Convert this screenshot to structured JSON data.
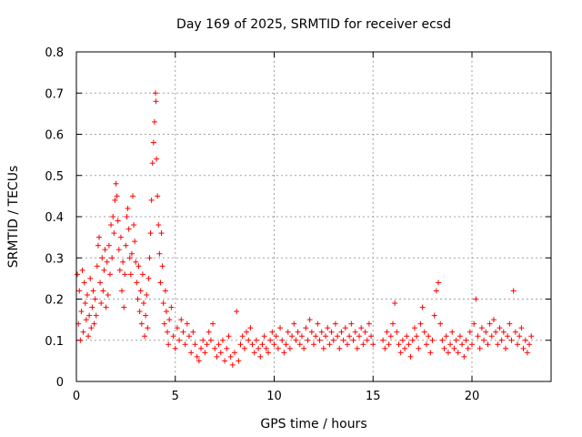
{
  "chart_data": {
    "type": "scatter",
    "title": "Day 169 of 2025, SRMTID for receiver ecsd",
    "xlabel": "GPS time / hours",
    "ylabel": "SRMTID / TECUs",
    "xlim": [
      0,
      24
    ],
    "ylim": [
      0,
      0.8
    ],
    "xticks": [
      0,
      5,
      10,
      15,
      20
    ],
    "xtick_labels": [
      "0",
      "5",
      "10",
      "15",
      "20"
    ],
    "yticks": [
      0,
      0.1,
      0.2,
      0.3,
      0.4,
      0.5,
      0.6,
      0.7,
      0.8
    ],
    "ytick_labels": [
      "0",
      "0.1",
      "0.2",
      "0.3",
      "0.4",
      "0.5",
      "0.6",
      "0.7",
      "0.8"
    ],
    "grid": true,
    "marker": "+",
    "series": [
      {
        "name": "SRMTID",
        "color": "#ff0000",
        "points": [
          [
            0.05,
            0.26
          ],
          [
            0.1,
            0.14
          ],
          [
            0.15,
            0.22
          ],
          [
            0.2,
            0.1
          ],
          [
            0.25,
            0.17
          ],
          [
            0.3,
            0.27
          ],
          [
            0.35,
            0.12
          ],
          [
            0.4,
            0.24
          ],
          [
            0.45,
            0.19
          ],
          [
            0.5,
            0.15
          ],
          [
            0.55,
            0.21
          ],
          [
            0.6,
            0.11
          ],
          [
            0.65,
            0.16
          ],
          [
            0.7,
            0.25
          ],
          [
            0.75,
            0.13
          ],
          [
            0.8,
            0.18
          ],
          [
            0.85,
            0.22
          ],
          [
            0.9,
            0.14
          ],
          [
            0.95,
            0.2
          ],
          [
            1.0,
            0.16
          ],
          [
            1.05,
            0.28
          ],
          [
            1.1,
            0.33
          ],
          [
            1.15,
            0.35
          ],
          [
            1.2,
            0.24
          ],
          [
            1.25,
            0.19
          ],
          [
            1.3,
            0.3
          ],
          [
            1.35,
            0.22
          ],
          [
            1.4,
            0.27
          ],
          [
            1.45,
            0.32
          ],
          [
            1.5,
            0.18
          ],
          [
            1.55,
            0.29
          ],
          [
            1.6,
            0.21
          ],
          [
            1.65,
            0.33
          ],
          [
            1.7,
            0.26
          ],
          [
            1.75,
            0.38
          ],
          [
            1.8,
            0.3
          ],
          [
            1.85,
            0.4
          ],
          [
            1.9,
            0.36
          ],
          [
            1.95,
            0.44
          ],
          [
            2.0,
            0.48
          ],
          [
            2.05,
            0.45
          ],
          [
            2.1,
            0.39
          ],
          [
            2.15,
            0.32
          ],
          [
            2.2,
            0.27
          ],
          [
            2.25,
            0.35
          ],
          [
            2.3,
            0.22
          ],
          [
            2.35,
            0.29
          ],
          [
            2.4,
            0.18
          ],
          [
            2.45,
            0.26
          ],
          [
            2.5,
            0.33
          ],
          [
            2.55,
            0.4
          ],
          [
            2.6,
            0.42
          ],
          [
            2.65,
            0.37
          ],
          [
            2.7,
            0.3
          ],
          [
            2.75,
            0.26
          ],
          [
            2.8,
            0.31
          ],
          [
            2.85,
            0.45
          ],
          [
            2.9,
            0.38
          ],
          [
            2.95,
            0.34
          ],
          [
            3.0,
            0.29
          ],
          [
            3.05,
            0.24
          ],
          [
            3.1,
            0.2
          ],
          [
            3.15,
            0.28
          ],
          [
            3.2,
            0.17
          ],
          [
            3.25,
            0.22
          ],
          [
            3.3,
            0.14
          ],
          [
            3.35,
            0.26
          ],
          [
            3.4,
            0.19
          ],
          [
            3.45,
            0.11
          ],
          [
            3.5,
            0.16
          ],
          [
            3.55,
            0.21
          ],
          [
            3.6,
            0.13
          ],
          [
            3.65,
            0.25
          ],
          [
            3.7,
            0.3
          ],
          [
            3.75,
            0.36
          ],
          [
            3.8,
            0.44
          ],
          [
            3.85,
            0.53
          ],
          [
            3.9,
            0.58
          ],
          [
            3.95,
            0.63
          ],
          [
            4.0,
            0.7
          ],
          [
            4.02,
            0.68
          ],
          [
            4.05,
            0.54
          ],
          [
            4.1,
            0.45
          ],
          [
            4.15,
            0.38
          ],
          [
            4.2,
            0.31
          ],
          [
            4.25,
            0.24
          ],
          [
            4.3,
            0.36
          ],
          [
            4.35,
            0.28
          ],
          [
            4.4,
            0.19
          ],
          [
            4.45,
            0.14
          ],
          [
            4.5,
            0.22
          ],
          [
            4.55,
            0.17
          ],
          [
            4.6,
            0.12
          ],
          [
            4.65,
            0.09
          ],
          [
            4.7,
            0.15
          ],
          [
            4.8,
            0.18
          ],
          [
            4.9,
            0.11
          ],
          [
            5.0,
            0.08
          ],
          [
            5.1,
            0.13
          ],
          [
            5.2,
            0.1
          ],
          [
            5.3,
            0.15
          ],
          [
            5.4,
            0.12
          ],
          [
            5.5,
            0.09
          ],
          [
            5.6,
            0.14
          ],
          [
            5.7,
            0.11
          ],
          [
            5.8,
            0.07
          ],
          [
            5.9,
            0.12
          ],
          [
            6.0,
            0.09
          ],
          [
            6.1,
            0.06
          ],
          [
            6.2,
            0.05
          ],
          [
            6.3,
            0.08
          ],
          [
            6.4,
            0.1
          ],
          [
            6.5,
            0.07
          ],
          [
            6.6,
            0.09
          ],
          [
            6.7,
            0.12
          ],
          [
            6.8,
            0.1
          ],
          [
            6.9,
            0.14
          ],
          [
            7.0,
            0.08
          ],
          [
            7.1,
            0.06
          ],
          [
            7.2,
            0.09
          ],
          [
            7.3,
            0.07
          ],
          [
            7.4,
            0.1
          ],
          [
            7.5,
            0.05
          ],
          [
            7.6,
            0.08
          ],
          [
            7.7,
            0.11
          ],
          [
            7.8,
            0.06
          ],
          [
            7.9,
            0.04
          ],
          [
            8.0,
            0.07
          ],
          [
            8.1,
            0.17
          ],
          [
            8.2,
            0.05
          ],
          [
            8.3,
            0.09
          ],
          [
            8.4,
            0.11
          ],
          [
            8.5,
            0.08
          ],
          [
            8.6,
            0.12
          ],
          [
            8.7,
            0.1
          ],
          [
            8.8,
            0.13
          ],
          [
            8.9,
            0.09
          ],
          [
            9.0,
            0.07
          ],
          [
            9.1,
            0.1
          ],
          [
            9.2,
            0.08
          ],
          [
            9.3,
            0.06
          ],
          [
            9.4,
            0.09
          ],
          [
            9.5,
            0.11
          ],
          [
            9.6,
            0.08
          ],
          [
            9.7,
            0.07
          ],
          [
            9.8,
            0.1
          ],
          [
            9.9,
            0.12
          ],
          [
            10.0,
            0.09
          ],
          [
            10.1,
            0.11
          ],
          [
            10.2,
            0.08
          ],
          [
            10.3,
            0.13
          ],
          [
            10.4,
            0.1
          ],
          [
            10.5,
            0.07
          ],
          [
            10.6,
            0.09
          ],
          [
            10.7,
            0.12
          ],
          [
            10.8,
            0.08
          ],
          [
            10.9,
            0.11
          ],
          [
            11.0,
            0.14
          ],
          [
            11.1,
            0.1
          ],
          [
            11.2,
            0.12
          ],
          [
            11.3,
            0.09
          ],
          [
            11.4,
            0.11
          ],
          [
            11.5,
            0.08
          ],
          [
            11.6,
            0.13
          ],
          [
            11.7,
            0.1
          ],
          [
            11.8,
            0.15
          ],
          [
            11.9,
            0.12
          ],
          [
            12.0,
            0.09
          ],
          [
            12.1,
            0.11
          ],
          [
            12.2,
            0.14
          ],
          [
            12.3,
            0.1
          ],
          [
            12.4,
            0.12
          ],
          [
            12.5,
            0.08
          ],
          [
            12.6,
            0.11
          ],
          [
            12.7,
            0.13
          ],
          [
            12.8,
            0.09
          ],
          [
            12.9,
            0.12
          ],
          [
            13.0,
            0.1
          ],
          [
            13.1,
            0.14
          ],
          [
            13.2,
            0.11
          ],
          [
            13.3,
            0.08
          ],
          [
            13.4,
            0.12
          ],
          [
            13.5,
            0.1
          ],
          [
            13.6,
            0.13
          ],
          [
            13.7,
            0.09
          ],
          [
            13.8,
            0.11
          ],
          [
            13.9,
            0.14
          ],
          [
            14.0,
            0.1
          ],
          [
            14.1,
            0.12
          ],
          [
            14.2,
            0.08
          ],
          [
            14.3,
            0.11
          ],
          [
            14.4,
            0.13
          ],
          [
            14.5,
            0.09
          ],
          [
            14.6,
            0.12
          ],
          [
            14.7,
            0.1
          ],
          [
            14.8,
            0.14
          ],
          [
            14.9,
            0.11
          ],
          [
            15.0,
            0.09
          ],
          [
            15.5,
            0.1
          ],
          [
            15.6,
            0.08
          ],
          [
            15.7,
            0.12
          ],
          [
            15.8,
            0.09
          ],
          [
            15.9,
            0.11
          ],
          [
            16.0,
            0.14
          ],
          [
            16.1,
            0.19
          ],
          [
            16.2,
            0.12
          ],
          [
            16.3,
            0.09
          ],
          [
            16.4,
            0.07
          ],
          [
            16.5,
            0.1
          ],
          [
            16.6,
            0.08
          ],
          [
            16.7,
            0.11
          ],
          [
            16.8,
            0.09
          ],
          [
            16.9,
            0.06
          ],
          [
            17.0,
            0.1
          ],
          [
            17.1,
            0.13
          ],
          [
            17.2,
            0.11
          ],
          [
            17.3,
            0.08
          ],
          [
            17.4,
            0.14
          ],
          [
            17.5,
            0.18
          ],
          [
            17.6,
            0.12
          ],
          [
            17.7,
            0.09
          ],
          [
            17.8,
            0.11
          ],
          [
            17.9,
            0.07
          ],
          [
            18.0,
            0.1
          ],
          [
            18.1,
            0.16
          ],
          [
            18.2,
            0.22
          ],
          [
            18.3,
            0.24
          ],
          [
            18.4,
            0.14
          ],
          [
            18.5,
            0.1
          ],
          [
            18.6,
            0.08
          ],
          [
            18.7,
            0.11
          ],
          [
            18.8,
            0.07
          ],
          [
            18.9,
            0.09
          ],
          [
            19.0,
            0.12
          ],
          [
            19.1,
            0.08
          ],
          [
            19.2,
            0.1
          ],
          [
            19.3,
            0.07
          ],
          [
            19.4,
            0.11
          ],
          [
            19.5,
            0.09
          ],
          [
            19.6,
            0.06
          ],
          [
            19.7,
            0.1
          ],
          [
            19.8,
            0.08
          ],
          [
            19.9,
            0.12
          ],
          [
            20.0,
            0.09
          ],
          [
            20.1,
            0.14
          ],
          [
            20.2,
            0.2
          ],
          [
            20.3,
            0.11
          ],
          [
            20.4,
            0.08
          ],
          [
            20.5,
            0.13
          ],
          [
            20.6,
            0.1
          ],
          [
            20.7,
            0.12
          ],
          [
            20.8,
            0.09
          ],
          [
            20.9,
            0.14
          ],
          [
            21.0,
            0.11
          ],
          [
            21.1,
            0.15
          ],
          [
            21.2,
            0.12
          ],
          [
            21.3,
            0.09
          ],
          [
            21.4,
            0.13
          ],
          [
            21.5,
            0.1
          ],
          [
            21.6,
            0.12
          ],
          [
            21.7,
            0.08
          ],
          [
            21.8,
            0.11
          ],
          [
            21.9,
            0.14
          ],
          [
            22.0,
            0.1
          ],
          [
            22.1,
            0.22
          ],
          [
            22.2,
            0.12
          ],
          [
            22.3,
            0.09
          ],
          [
            22.4,
            0.11
          ],
          [
            22.5,
            0.13
          ],
          [
            22.6,
            0.08
          ],
          [
            22.7,
            0.1
          ],
          [
            22.8,
            0.07
          ],
          [
            22.9,
            0.09
          ],
          [
            23.0,
            0.11
          ]
        ]
      }
    ]
  }
}
